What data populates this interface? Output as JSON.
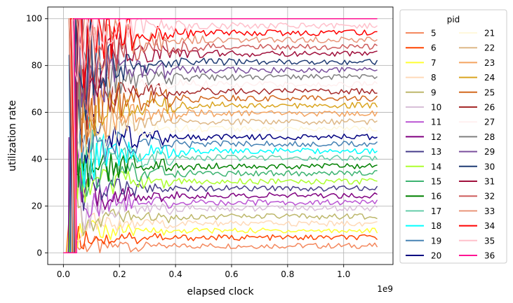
{
  "chart_data": {
    "type": "line",
    "xlabel": "elapsed clock",
    "ylabel": "utilization rate",
    "x_offset_label": "1e9",
    "xlim": [
      -0.056,
      1.176
    ],
    "ylim": [
      -5,
      105
    ],
    "x_ticks": [
      0.0,
      0.2,
      0.4,
      0.6,
      0.8,
      1.0
    ],
    "x_tick_labels": [
      "0.0",
      "0.2",
      "0.4",
      "0.6",
      "0.8",
      "1.0"
    ],
    "y_ticks": [
      0,
      20,
      40,
      60,
      80,
      100
    ],
    "y_tick_labels": [
      "0",
      "20",
      "40",
      "60",
      "80",
      "100"
    ],
    "grid": true,
    "legend": {
      "title": "pid",
      "placement": "outside-right",
      "columns": 2
    },
    "x_start": 0.02,
    "x_end": 1.12,
    "series": [
      {
        "name": "5",
        "color": "#f4895f",
        "final": 3
      },
      {
        "name": "6",
        "color": "#ff4500",
        "final": 6.5
      },
      {
        "name": "7",
        "color": "#ffff33",
        "final": 9.5
      },
      {
        "name": "8",
        "color": "#ffdab9",
        "final": 12.5
      },
      {
        "name": "9",
        "color": "#bdb76b",
        "final": 15.5
      },
      {
        "name": "10",
        "color": "#d8bfd8",
        "final": 19
      },
      {
        "name": "11",
        "color": "#ba55d3",
        "final": 21.5
      },
      {
        "name": "12",
        "color": "#800080",
        "final": 24.5
      },
      {
        "name": "13",
        "color": "#483d8b",
        "final": 27.5
      },
      {
        "name": "14",
        "color": "#adff2f",
        "final": 30.5
      },
      {
        "name": "15",
        "color": "#3cb371",
        "final": 34
      },
      {
        "name": "16",
        "color": "#008000",
        "final": 37
      },
      {
        "name": "17",
        "color": "#66cdaa",
        "final": 40.5
      },
      {
        "name": "18",
        "color": "#00ffff",
        "final": 43.5
      },
      {
        "name": "19",
        "color": "#4682b4",
        "final": 46.5
      },
      {
        "name": "20",
        "color": "#000080",
        "final": 49.5
      },
      {
        "name": "21",
        "color": "#fff8dc",
        "final": 53
      },
      {
        "name": "22",
        "color": "#deb887",
        "final": 56
      },
      {
        "name": "23",
        "color": "#f4a460",
        "final": 59.5
      },
      {
        "name": "24",
        "color": "#daa520",
        "final": 63
      },
      {
        "name": "25",
        "color": "#d2691e",
        "final": 66
      },
      {
        "name": "26",
        "color": "#a52a2a",
        "final": 69
      },
      {
        "name": "27",
        "color": "#fff0f0",
        "final": 72
      },
      {
        "name": "28",
        "color": "#808080",
        "final": 75
      },
      {
        "name": "29",
        "color": "#7b4f9d",
        "final": 78
      },
      {
        "name": "30",
        "color": "#1f3b73",
        "final": 81.5
      },
      {
        "name": "31",
        "color": "#a0103c",
        "final": 85
      },
      {
        "name": "32",
        "color": "#cd5c5c",
        "final": 88
      },
      {
        "name": "33",
        "color": "#e9967a",
        "final": 91
      },
      {
        "name": "34",
        "color": "#ff0000",
        "final": 94
      },
      {
        "name": "35",
        "color": "#ffc0cb",
        "final": 97
      },
      {
        "name": "36",
        "color": "#ff1493",
        "final": 100
      }
    ]
  }
}
